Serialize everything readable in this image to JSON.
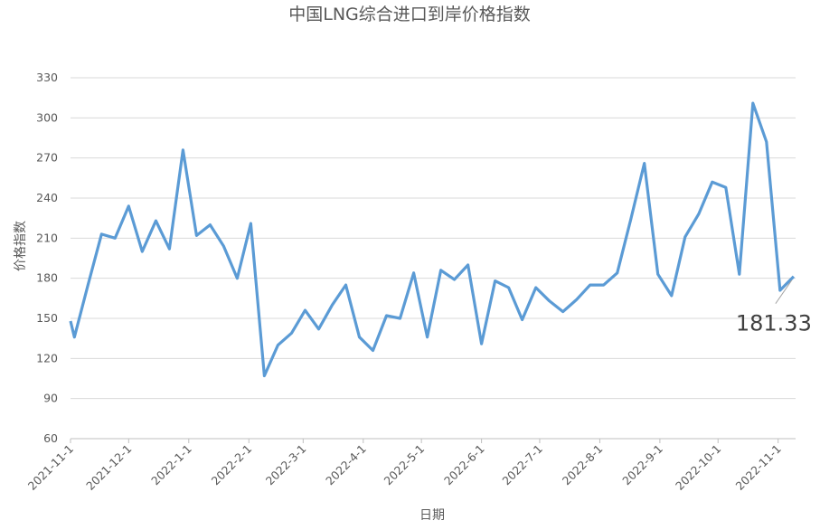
{
  "chart_data": {
    "type": "line",
    "title": "中国LNG综合进口到岸价格指数",
    "x_label": "日期",
    "y_label": "价格指数",
    "color": "#5b9bd5",
    "grid": true,
    "x": [
      "2021-11-1",
      "2021-11-3",
      "2021-11-10",
      "2021-11-17",
      "2021-11-24",
      "2021-12-1",
      "2021-12-8",
      "2021-12-15",
      "2021-12-22",
      "2021-12-29",
      "2022-1-5",
      "2022-1-12",
      "2022-1-19",
      "2022-1-26",
      "2022-2-2",
      "2022-2-9",
      "2022-2-16",
      "2022-2-23",
      "2022-3-2",
      "2022-3-9",
      "2022-3-16",
      "2022-3-23",
      "2022-3-30",
      "2022-4-6",
      "2022-4-13",
      "2022-4-20",
      "2022-4-27",
      "2022-5-4",
      "2022-5-11",
      "2022-5-18",
      "2022-5-25",
      "2022-6-1",
      "2022-6-8",
      "2022-6-15",
      "2022-6-22",
      "2022-6-29",
      "2022-7-6",
      "2022-7-13",
      "2022-7-20",
      "2022-7-27",
      "2022-8-3",
      "2022-8-10",
      "2022-8-17",
      "2022-8-24",
      "2022-8-31",
      "2022-9-7",
      "2022-9-14",
      "2022-9-21",
      "2022-9-28",
      "2022-10-5",
      "2022-10-12",
      "2022-10-19",
      "2022-10-26",
      "2022-11-2",
      "2022-11-9"
    ],
    "values": [
      148,
      136,
      175,
      213,
      210,
      234,
      200,
      223,
      202,
      276,
      212,
      220,
      204,
      180,
      221,
      107,
      130,
      139,
      156,
      142,
      160,
      175,
      136,
      126,
      152,
      150,
      184,
      136,
      186,
      179,
      190,
      131,
      178,
      173,
      149,
      173,
      163,
      155,
      164,
      175,
      175,
      184,
      224,
      266,
      183,
      167,
      211,
      228,
      252,
      248,
      183,
      311,
      282,
      171,
      181.33
    ],
    "xlim": [
      "2021-11-1",
      "2022-11-10"
    ],
    "xticks": [
      "2021-11-1",
      "2021-12-1",
      "2022-1-1",
      "2022-2-1",
      "2022-3-1",
      "2022-4-1",
      "2022-5-1",
      "2022-6-1",
      "2022-7-1",
      "2022-8-1",
      "2022-9-1",
      "2022-10-1",
      "2022-11-1"
    ],
    "ylim": [
      60,
      330
    ],
    "yticks": [
      60,
      90,
      120,
      150,
      180,
      210,
      240,
      270,
      300,
      330
    ]
  }
}
